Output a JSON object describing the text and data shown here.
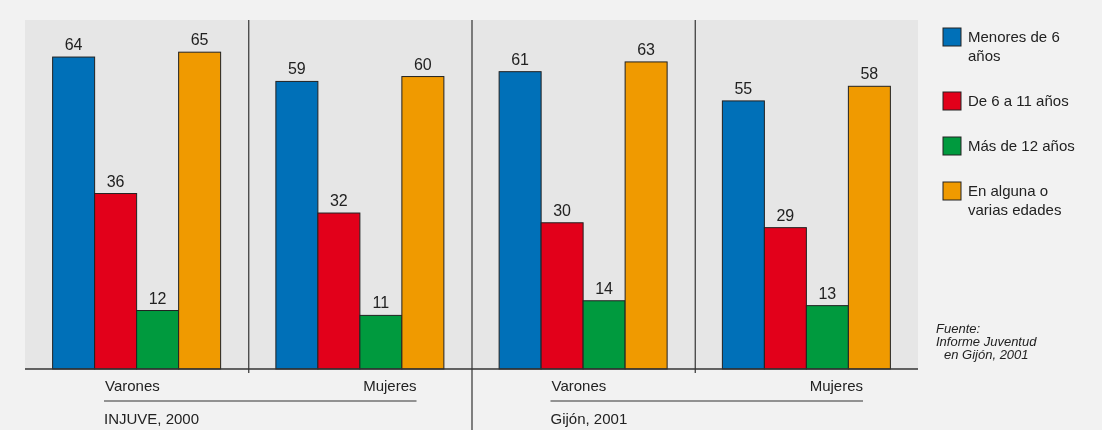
{
  "chart_data": {
    "type": "bar",
    "categories": [
      "Varones",
      "Mujeres",
      "Varones",
      "Mujeres"
    ],
    "series": [
      {
        "name": "Menores de 6 años",
        "color": "#0070b8",
        "values": [
          64,
          59,
          61,
          55
        ]
      },
      {
        "name": "De 6 a 11 años",
        "color": "#e2001a",
        "values": [
          36,
          32,
          30,
          29
        ]
      },
      {
        "name": "Más de 12 años",
        "color": "#009a3e",
        "values": [
          12,
          11,
          14,
          13
        ]
      },
      {
        "name": "En alguna o varias edades",
        "color": "#f09a00",
        "values": [
          65,
          60,
          63,
          58
        ]
      }
    ],
    "data_labels": true,
    "legend": "right",
    "annotations": [
      "INJUVE, 2000",
      "Gijón, 2001",
      "Fuente:\nInforme Juventud\nen Gijón, 2001"
    ]
  }
}
